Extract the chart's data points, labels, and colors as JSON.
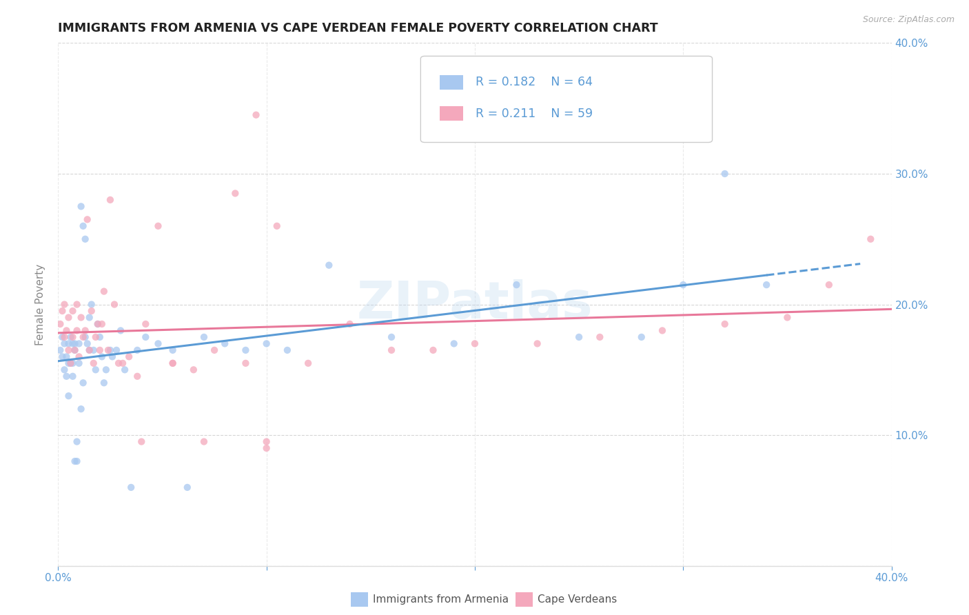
{
  "title": "IMMIGRANTS FROM ARMENIA VS CAPE VERDEAN FEMALE POVERTY CORRELATION CHART",
  "source": "Source: ZipAtlas.com",
  "ylabel": "Female Poverty",
  "xlim": [
    0.0,
    0.4
  ],
  "ylim": [
    0.0,
    0.4
  ],
  "legend_label1": "Immigrants from Armenia",
  "legend_label2": "Cape Verdeans",
  "legend_R1": "0.182",
  "legend_N1": "64",
  "legend_R2": "0.211",
  "legend_N2": "59",
  "color_armenia": "#A8C8F0",
  "color_capeverde": "#F4A8BC",
  "color_trendline_armenia": "#5B9BD5",
  "color_trendline_capeverde": "#E8789A",
  "background_color": "#FFFFFF",
  "grid_color": "#CCCCCC",
  "title_color": "#222222",
  "axis_label_color": "#888888",
  "right_tick_color": "#5B9BD5",
  "bottom_tick_color": "#5B9BD5",
  "scatter_alpha": 0.75,
  "scatter_size": 55,
  "armenia_x": [
    0.001,
    0.002,
    0.002,
    0.003,
    0.003,
    0.004,
    0.004,
    0.005,
    0.005,
    0.005,
    0.006,
    0.006,
    0.007,
    0.007,
    0.007,
    0.008,
    0.008,
    0.008,
    0.009,
    0.009,
    0.01,
    0.01,
    0.011,
    0.011,
    0.012,
    0.012,
    0.013,
    0.013,
    0.014,
    0.015,
    0.015,
    0.016,
    0.017,
    0.018,
    0.019,
    0.02,
    0.021,
    0.022,
    0.023,
    0.025,
    0.026,
    0.028,
    0.03,
    0.032,
    0.035,
    0.038,
    0.042,
    0.048,
    0.055,
    0.062,
    0.07,
    0.08,
    0.09,
    0.1,
    0.11,
    0.13,
    0.16,
    0.19,
    0.22,
    0.25,
    0.28,
    0.3,
    0.32,
    0.34
  ],
  "armenia_y": [
    0.165,
    0.16,
    0.175,
    0.15,
    0.17,
    0.145,
    0.16,
    0.155,
    0.13,
    0.17,
    0.155,
    0.175,
    0.145,
    0.155,
    0.17,
    0.08,
    0.17,
    0.165,
    0.08,
    0.095,
    0.17,
    0.155,
    0.12,
    0.275,
    0.26,
    0.14,
    0.25,
    0.175,
    0.17,
    0.19,
    0.165,
    0.2,
    0.165,
    0.15,
    0.185,
    0.175,
    0.16,
    0.14,
    0.15,
    0.165,
    0.16,
    0.165,
    0.18,
    0.15,
    0.06,
    0.165,
    0.175,
    0.17,
    0.165,
    0.06,
    0.175,
    0.17,
    0.165,
    0.17,
    0.165,
    0.23,
    0.175,
    0.17,
    0.215,
    0.175,
    0.175,
    0.215,
    0.3,
    0.215
  ],
  "capeverde_x": [
    0.001,
    0.002,
    0.003,
    0.003,
    0.004,
    0.005,
    0.005,
    0.006,
    0.007,
    0.007,
    0.008,
    0.009,
    0.009,
    0.01,
    0.011,
    0.012,
    0.013,
    0.014,
    0.015,
    0.016,
    0.017,
    0.018,
    0.019,
    0.02,
    0.021,
    0.022,
    0.024,
    0.025,
    0.027,
    0.029,
    0.031,
    0.034,
    0.038,
    0.042,
    0.048,
    0.055,
    0.065,
    0.075,
    0.09,
    0.105,
    0.12,
    0.14,
    0.16,
    0.18,
    0.2,
    0.23,
    0.26,
    0.29,
    0.32,
    0.35,
    0.37,
    0.39,
    0.1,
    0.1,
    0.095,
    0.085,
    0.07,
    0.055,
    0.04
  ],
  "capeverde_y": [
    0.185,
    0.195,
    0.175,
    0.2,
    0.18,
    0.165,
    0.19,
    0.155,
    0.175,
    0.195,
    0.165,
    0.18,
    0.2,
    0.16,
    0.19,
    0.175,
    0.18,
    0.265,
    0.165,
    0.195,
    0.155,
    0.175,
    0.185,
    0.165,
    0.185,
    0.21,
    0.165,
    0.28,
    0.2,
    0.155,
    0.155,
    0.16,
    0.145,
    0.185,
    0.26,
    0.155,
    0.15,
    0.165,
    0.155,
    0.26,
    0.155,
    0.185,
    0.165,
    0.165,
    0.17,
    0.17,
    0.175,
    0.18,
    0.185,
    0.19,
    0.215,
    0.25,
    0.09,
    0.095,
    0.345,
    0.285,
    0.095,
    0.155,
    0.095
  ]
}
